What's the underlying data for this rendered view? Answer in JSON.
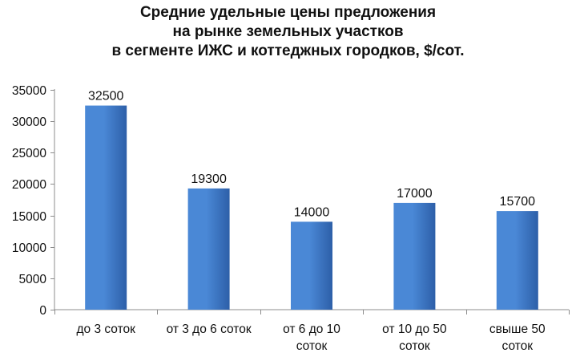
{
  "chart_data": {
    "type": "bar",
    "title_lines": [
      "Средние удельные цены предложения",
      "на рынке земельных участков",
      "в сегменте ИЖС и коттеджных городков, $/сот."
    ],
    "categories": [
      [
        "до 3 соток"
      ],
      [
        "от 3 до 6 соток"
      ],
      [
        "от 6 до 10",
        "соток"
      ],
      [
        "от 10 до 50",
        "соток"
      ],
      [
        "свыше 50",
        "соток"
      ]
    ],
    "values": [
      32500,
      19300,
      14000,
      17000,
      15700
    ],
    "data_labels": [
      "32500",
      "19300",
      "14000",
      "17000",
      "15700"
    ],
    "ylim": [
      0,
      35000
    ],
    "yticks": [
      0,
      5000,
      10000,
      15000,
      20000,
      25000,
      30000,
      35000
    ],
    "grid": false,
    "legend": "none",
    "bar_color_light": "#4a88d6",
    "bar_color_dark": "#2d5fa8",
    "axis_color": "#8c8c8c"
  }
}
